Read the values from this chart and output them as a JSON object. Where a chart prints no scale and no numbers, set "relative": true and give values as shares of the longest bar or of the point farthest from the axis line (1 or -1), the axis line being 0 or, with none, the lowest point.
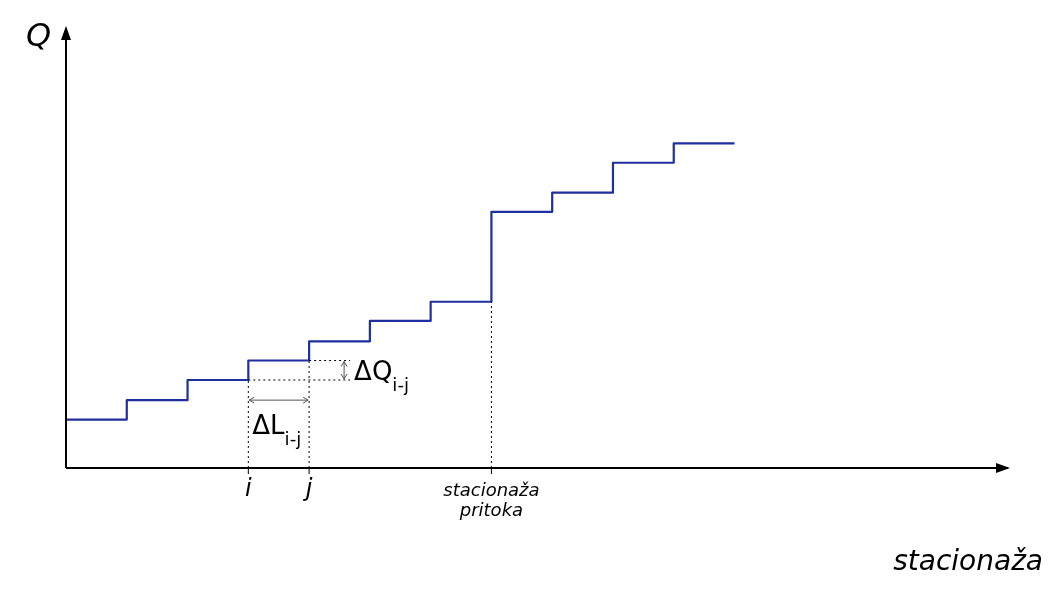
{
  "chart_data": {
    "type": "step",
    "relative": true,
    "xlabel": "stacionaža",
    "ylabel": "Q",
    "categories": [
      null,
      null,
      null,
      "i",
      "j",
      null,
      null,
      "stacionaža pritoka",
      null,
      null,
      null,
      null
    ],
    "series": [
      {
        "color": "#1f2f9e",
        "values": [
          0.149,
          0.209,
          0.271,
          0.331,
          0.39,
          0.453,
          0.512,
          0.789,
          0.848,
          0.94,
          1,
          1
        ]
      }
    ],
    "annotations": [
      "ΔQ$_{i-j}$",
      "ΔL$_{i-j}$"
    ],
    "grid": "x",
    "marker": "none",
    "line_style": "solid"
  }
}
